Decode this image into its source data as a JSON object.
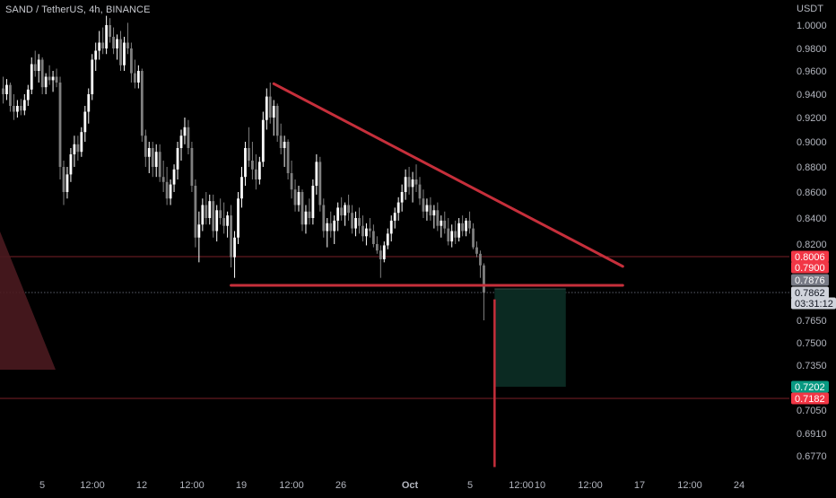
{
  "chart_data": {
    "type": "candlestick",
    "title": "SAND / TetherUS, 4h, BINANCE",
    "currency_label": "USDT",
    "y_ticks": [
      "1.0000",
      "0.9800",
      "0.9600",
      "0.9400",
      "0.9200",
      "0.9000",
      "0.8800",
      "0.8600",
      "0.8400",
      "0.8200",
      "0.7650",
      "0.7500",
      "0.7350",
      "0.7050",
      "0.6910",
      "0.6770"
    ],
    "y_tick_values": [
      1.0,
      0.98,
      0.96,
      0.94,
      0.92,
      0.9,
      0.88,
      0.86,
      0.84,
      0.82,
      0.765,
      0.75,
      0.735,
      0.705,
      0.691,
      0.677
    ],
    "x_ticks": [
      "5",
      "12:00",
      "12",
      "12:00",
      "19",
      "12:00",
      "26",
      "Oct",
      "5",
      "12:00",
      "10",
      "12:00",
      "17",
      "12:00",
      "24"
    ],
    "x_tick_bold": [
      "Oct"
    ],
    "price_badges": [
      {
        "label": "0.8006",
        "value": 0.8006,
        "bg": "#f23645",
        "fg": "#ffffff"
      },
      {
        "label": "0.7900",
        "value": 0.79,
        "bg": "#f23645",
        "fg": "#ffffff"
      },
      {
        "label": "0.7876",
        "value": 0.7876,
        "bg": "#787b86",
        "fg": "#ffffff"
      },
      {
        "label": "0.7862",
        "value": 0.7862,
        "bg": "#d1d4dc",
        "fg": "#131722"
      },
      {
        "label": "03:31:12",
        "value": 0.7862,
        "bg": "#d1d4dc",
        "fg": "#131722",
        "countdown": true
      },
      {
        "label": "0.7202",
        "value": 0.7202,
        "bg": "#089981",
        "fg": "#ffffff"
      },
      {
        "label": "0.7182",
        "value": 0.7182,
        "bg": "#f23645",
        "fg": "#ffffff"
      }
    ],
    "drawings": {
      "descending_resistance": {
        "from": {
          "bar": 76,
          "price": 0.949
        },
        "to": {
          "bar": 174,
          "price": 0.791
        },
        "color": "#c62f3b"
      },
      "support": {
        "from": {
          "bar": 64,
          "price": 0.787
        },
        "to": {
          "bar": 174,
          "price": 0.787
        },
        "color": "#c62f3b"
      },
      "breakdown_line": {
        "bar": 138,
        "from_price": 0.781,
        "to_price": 0.67,
        "color": "#c62f3b"
      },
      "short_target_zone": {
        "from_bar": 138,
        "to_bar": 158,
        "top": 0.7866,
        "bottom": 0.7202,
        "color": "#0b2a22"
      },
      "horizontal_levels": [
        {
          "price": 0.8006,
          "color": "#7a1f27",
          "style": "solid"
        },
        {
          "price": 0.7182,
          "color": "#7a1f27",
          "style": "solid"
        },
        {
          "price": 0.7862,
          "color": "#5d606b",
          "style": "dotted"
        }
      ],
      "left_shape": {
        "color": "#4a1a1f"
      }
    },
    "candle_colors": {
      "up": "#ffffff",
      "down": "#7f7f7f"
    },
    "ohlc": [
      {
        "o": 0.945,
        "h": 0.955,
        "l": 0.932,
        "c": 0.94
      },
      {
        "o": 0.94,
        "h": 0.953,
        "l": 0.935,
        "c": 0.948
      },
      {
        "o": 0.948,
        "h": 0.95,
        "l": 0.925,
        "c": 0.93
      },
      {
        "o": 0.93,
        "h": 0.94,
        "l": 0.918,
        "c": 0.925
      },
      {
        "o": 0.925,
        "h": 0.935,
        "l": 0.92,
        "c": 0.93
      },
      {
        "o": 0.93,
        "h": 0.936,
        "l": 0.922,
        "c": 0.926
      },
      {
        "o": 0.926,
        "h": 0.94,
        "l": 0.922,
        "c": 0.935
      },
      {
        "o": 0.935,
        "h": 0.948,
        "l": 0.93,
        "c": 0.944
      },
      {
        "o": 0.944,
        "h": 0.972,
        "l": 0.94,
        "c": 0.966
      },
      {
        "o": 0.966,
        "h": 0.978,
        "l": 0.955,
        "c": 0.96
      },
      {
        "o": 0.96,
        "h": 0.975,
        "l": 0.95,
        "c": 0.97
      },
      {
        "o": 0.97,
        "h": 0.972,
        "l": 0.94,
        "c": 0.946
      },
      {
        "o": 0.946,
        "h": 0.958,
        "l": 0.94,
        "c": 0.955
      },
      {
        "o": 0.955,
        "h": 0.965,
        "l": 0.948,
        "c": 0.952
      },
      {
        "o": 0.952,
        "h": 0.96,
        "l": 0.942,
        "c": 0.955
      },
      {
        "o": 0.955,
        "h": 0.962,
        "l": 0.946,
        "c": 0.95
      },
      {
        "o": 0.95,
        "h": 0.955,
        "l": 0.87,
        "c": 0.88
      },
      {
        "o": 0.88,
        "h": 0.885,
        "l": 0.85,
        "c": 0.86
      },
      {
        "o": 0.86,
        "h": 0.88,
        "l": 0.855,
        "c": 0.874
      },
      {
        "o": 0.874,
        "h": 0.895,
        "l": 0.868,
        "c": 0.89
      },
      {
        "o": 0.89,
        "h": 0.905,
        "l": 0.88,
        "c": 0.898
      },
      {
        "o": 0.898,
        "h": 0.905,
        "l": 0.885,
        "c": 0.892
      },
      {
        "o": 0.892,
        "h": 0.912,
        "l": 0.888,
        "c": 0.908
      },
      {
        "o": 0.908,
        "h": 0.93,
        "l": 0.9,
        "c": 0.925
      },
      {
        "o": 0.925,
        "h": 0.945,
        "l": 0.915,
        "c": 0.94
      },
      {
        "o": 0.94,
        "h": 0.975,
        "l": 0.935,
        "c": 0.97
      },
      {
        "o": 0.97,
        "h": 0.985,
        "l": 0.96,
        "c": 0.978
      },
      {
        "o": 0.978,
        "h": 0.995,
        "l": 0.97,
        "c": 0.985
      },
      {
        "o": 0.985,
        "h": 0.998,
        "l": 0.975,
        "c": 0.98
      },
      {
        "o": 0.98,
        "h": 1.008,
        "l": 0.975,
        "c": 1.0
      },
      {
        "o": 1.0,
        "h": 1.006,
        "l": 0.985,
        "c": 0.99
      },
      {
        "o": 0.99,
        "h": 0.998,
        "l": 0.975,
        "c": 0.98
      },
      {
        "o": 0.98,
        "h": 0.992,
        "l": 0.97,
        "c": 0.988
      },
      {
        "o": 0.988,
        "h": 0.995,
        "l": 0.96,
        "c": 0.965
      },
      {
        "o": 0.965,
        "h": 0.99,
        "l": 0.96,
        "c": 0.985
      },
      {
        "o": 0.985,
        "h": 1.002,
        "l": 0.975,
        "c": 0.98
      },
      {
        "o": 0.98,
        "h": 0.985,
        "l": 0.95,
        "c": 0.958
      },
      {
        "o": 0.958,
        "h": 0.97,
        "l": 0.945,
        "c": 0.95
      },
      {
        "o": 0.95,
        "h": 0.965,
        "l": 0.945,
        "c": 0.96
      },
      {
        "o": 0.96,
        "h": 0.962,
        "l": 0.9,
        "c": 0.905
      },
      {
        "o": 0.905,
        "h": 0.91,
        "l": 0.88,
        "c": 0.888
      },
      {
        "o": 0.888,
        "h": 0.9,
        "l": 0.875,
        "c": 0.895
      },
      {
        "o": 0.895,
        "h": 0.9,
        "l": 0.872,
        "c": 0.88
      },
      {
        "o": 0.88,
        "h": 0.898,
        "l": 0.872,
        "c": 0.892
      },
      {
        "o": 0.892,
        "h": 0.898,
        "l": 0.868,
        "c": 0.872
      },
      {
        "o": 0.872,
        "h": 0.885,
        "l": 0.86,
        "c": 0.868
      },
      {
        "o": 0.868,
        "h": 0.88,
        "l": 0.85,
        "c": 0.855
      },
      {
        "o": 0.855,
        "h": 0.87,
        "l": 0.85,
        "c": 0.866
      },
      {
        "o": 0.866,
        "h": 0.882,
        "l": 0.86,
        "c": 0.878
      },
      {
        "o": 0.878,
        "h": 0.9,
        "l": 0.87,
        "c": 0.895
      },
      {
        "o": 0.895,
        "h": 0.91,
        "l": 0.885,
        "c": 0.905
      },
      {
        "o": 0.905,
        "h": 0.92,
        "l": 0.898,
        "c": 0.912
      },
      {
        "o": 0.912,
        "h": 0.918,
        "l": 0.89,
        "c": 0.895
      },
      {
        "o": 0.895,
        "h": 0.9,
        "l": 0.86,
        "c": 0.865
      },
      {
        "o": 0.865,
        "h": 0.87,
        "l": 0.815,
        "c": 0.825
      },
      {
        "o": 0.825,
        "h": 0.845,
        "l": 0.795,
        "c": 0.835
      },
      {
        "o": 0.835,
        "h": 0.855,
        "l": 0.83,
        "c": 0.85
      },
      {
        "o": 0.85,
        "h": 0.86,
        "l": 0.835,
        "c": 0.84
      },
      {
        "o": 0.84,
        "h": 0.858,
        "l": 0.835,
        "c": 0.853
      },
      {
        "o": 0.853,
        "h": 0.858,
        "l": 0.825,
        "c": 0.83
      },
      {
        "o": 0.83,
        "h": 0.85,
        "l": 0.822,
        "c": 0.846
      },
      {
        "o": 0.846,
        "h": 0.855,
        "l": 0.835,
        "c": 0.84
      },
      {
        "o": 0.84,
        "h": 0.852,
        "l": 0.828,
        "c": 0.834
      },
      {
        "o": 0.834,
        "h": 0.845,
        "l": 0.825,
        "c": 0.842
      },
      {
        "o": 0.842,
        "h": 0.85,
        "l": 0.79,
        "c": 0.8
      },
      {
        "o": 0.8,
        "h": 0.83,
        "l": 0.788,
        "c": 0.825
      },
      {
        "o": 0.825,
        "h": 0.86,
        "l": 0.82,
        "c": 0.855
      },
      {
        "o": 0.855,
        "h": 0.88,
        "l": 0.848,
        "c": 0.872
      },
      {
        "o": 0.872,
        "h": 0.9,
        "l": 0.865,
        "c": 0.895
      },
      {
        "o": 0.895,
        "h": 0.912,
        "l": 0.88,
        "c": 0.885
      },
      {
        "o": 0.885,
        "h": 0.9,
        "l": 0.87,
        "c": 0.878
      },
      {
        "o": 0.878,
        "h": 0.89,
        "l": 0.862,
        "c": 0.87
      },
      {
        "o": 0.87,
        "h": 0.888,
        "l": 0.866,
        "c": 0.884
      },
      {
        "o": 0.884,
        "h": 0.925,
        "l": 0.88,
        "c": 0.918
      },
      {
        "o": 0.918,
        "h": 0.945,
        "l": 0.91,
        "c": 0.938
      },
      {
        "o": 0.938,
        "h": 0.95,
        "l": 0.915,
        "c": 0.92
      },
      {
        "o": 0.92,
        "h": 0.935,
        "l": 0.905,
        "c": 0.93
      },
      {
        "o": 0.93,
        "h": 0.932,
        "l": 0.9,
        "c": 0.905
      },
      {
        "o": 0.905,
        "h": 0.915,
        "l": 0.89,
        "c": 0.895
      },
      {
        "o": 0.895,
        "h": 0.905,
        "l": 0.88,
        "c": 0.9
      },
      {
        "o": 0.9,
        "h": 0.902,
        "l": 0.87,
        "c": 0.875
      },
      {
        "o": 0.875,
        "h": 0.885,
        "l": 0.855,
        "c": 0.862
      },
      {
        "o": 0.862,
        "h": 0.87,
        "l": 0.845,
        "c": 0.85
      },
      {
        "o": 0.85,
        "h": 0.865,
        "l": 0.845,
        "c": 0.86
      },
      {
        "o": 0.86,
        "h": 0.862,
        "l": 0.83,
        "c": 0.835
      },
      {
        "o": 0.835,
        "h": 0.85,
        "l": 0.828,
        "c": 0.845
      },
      {
        "o": 0.845,
        "h": 0.855,
        "l": 0.835,
        "c": 0.84
      },
      {
        "o": 0.84,
        "h": 0.87,
        "l": 0.835,
        "c": 0.865
      },
      {
        "o": 0.865,
        "h": 0.89,
        "l": 0.858,
        "c": 0.884
      },
      {
        "o": 0.884,
        "h": 0.888,
        "l": 0.845,
        "c": 0.85
      },
      {
        "o": 0.85,
        "h": 0.855,
        "l": 0.825,
        "c": 0.83
      },
      {
        "o": 0.83,
        "h": 0.84,
        "l": 0.815,
        "c": 0.836
      },
      {
        "o": 0.836,
        "h": 0.845,
        "l": 0.825,
        "c": 0.83
      },
      {
        "o": 0.83,
        "h": 0.842,
        "l": 0.82,
        "c": 0.838
      },
      {
        "o": 0.838,
        "h": 0.852,
        "l": 0.83,
        "c": 0.848
      },
      {
        "o": 0.848,
        "h": 0.856,
        "l": 0.838,
        "c": 0.842
      },
      {
        "o": 0.842,
        "h": 0.852,
        "l": 0.834,
        "c": 0.85
      },
      {
        "o": 0.85,
        "h": 0.858,
        "l": 0.838,
        "c": 0.844
      },
      {
        "o": 0.844,
        "h": 0.85,
        "l": 0.828,
        "c": 0.832
      },
      {
        "o": 0.832,
        "h": 0.845,
        "l": 0.826,
        "c": 0.84
      },
      {
        "o": 0.84,
        "h": 0.848,
        "l": 0.828,
        "c": 0.834
      },
      {
        "o": 0.834,
        "h": 0.842,
        "l": 0.822,
        "c": 0.826
      },
      {
        "o": 0.826,
        "h": 0.836,
        "l": 0.818,
        "c": 0.832
      },
      {
        "o": 0.832,
        "h": 0.84,
        "l": 0.825,
        "c": 0.83
      },
      {
        "o": 0.83,
        "h": 0.835,
        "l": 0.815,
        "c": 0.82
      },
      {
        "o": 0.82,
        "h": 0.826,
        "l": 0.805,
        "c": 0.81
      },
      {
        "o": 0.81,
        "h": 0.818,
        "l": 0.788,
        "c": 0.798
      },
      {
        "o": 0.798,
        "h": 0.822,
        "l": 0.795,
        "c": 0.818
      },
      {
        "o": 0.818,
        "h": 0.832,
        "l": 0.812,
        "c": 0.828
      },
      {
        "o": 0.828,
        "h": 0.842,
        "l": 0.822,
        "c": 0.838
      },
      {
        "o": 0.838,
        "h": 0.848,
        "l": 0.832,
        "c": 0.844
      },
      {
        "o": 0.844,
        "h": 0.856,
        "l": 0.838,
        "c": 0.852
      },
      {
        "o": 0.852,
        "h": 0.866,
        "l": 0.845,
        "c": 0.86
      },
      {
        "o": 0.86,
        "h": 0.878,
        "l": 0.854,
        "c": 0.872
      },
      {
        "o": 0.872,
        "h": 0.88,
        "l": 0.858,
        "c": 0.864
      },
      {
        "o": 0.864,
        "h": 0.876,
        "l": 0.852,
        "c": 0.87
      },
      {
        "o": 0.87,
        "h": 0.882,
        "l": 0.86,
        "c": 0.866
      },
      {
        "o": 0.866,
        "h": 0.872,
        "l": 0.85,
        "c": 0.855
      },
      {
        "o": 0.855,
        "h": 0.862,
        "l": 0.84,
        "c": 0.845
      },
      {
        "o": 0.845,
        "h": 0.855,
        "l": 0.838,
        "c": 0.85
      },
      {
        "o": 0.85,
        "h": 0.856,
        "l": 0.838,
        "c": 0.842
      },
      {
        "o": 0.842,
        "h": 0.85,
        "l": 0.832,
        "c": 0.846
      },
      {
        "o": 0.846,
        "h": 0.852,
        "l": 0.83,
        "c": 0.834
      },
      {
        "o": 0.834,
        "h": 0.842,
        "l": 0.825,
        "c": 0.838
      },
      {
        "o": 0.838,
        "h": 0.845,
        "l": 0.828,
        "c": 0.832
      },
      {
        "o": 0.832,
        "h": 0.84,
        "l": 0.818,
        "c": 0.822
      },
      {
        "o": 0.822,
        "h": 0.835,
        "l": 0.815,
        "c": 0.83
      },
      {
        "o": 0.83,
        "h": 0.838,
        "l": 0.82,
        "c": 0.825
      },
      {
        "o": 0.825,
        "h": 0.84,
        "l": 0.822,
        "c": 0.836
      },
      {
        "o": 0.836,
        "h": 0.842,
        "l": 0.826,
        "c": 0.83
      },
      {
        "o": 0.83,
        "h": 0.84,
        "l": 0.826,
        "c": 0.838
      },
      {
        "o": 0.838,
        "h": 0.845,
        "l": 0.828,
        "c": 0.832
      },
      {
        "o": 0.832,
        "h": 0.836,
        "l": 0.812,
        "c": 0.815
      },
      {
        "o": 0.815,
        "h": 0.822,
        "l": 0.8,
        "c": 0.805
      },
      {
        "o": 0.805,
        "h": 0.81,
        "l": 0.788,
        "c": 0.792
      },
      {
        "o": 0.792,
        "h": 0.794,
        "l": 0.765,
        "c": 0.786
      }
    ]
  }
}
